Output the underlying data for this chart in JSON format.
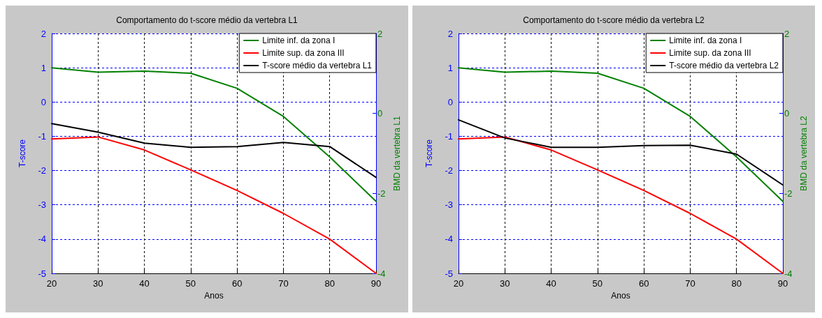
{
  "chart_data": [
    {
      "type": "line",
      "title": "Comportamento do t-score médio da vertebra L1",
      "xlabel": "Anos",
      "ylabel": "T-score",
      "y2label": "BMD da vertebra L1",
      "x": [
        20,
        30,
        40,
        50,
        60,
        70,
        80,
        90
      ],
      "xlim": [
        20,
        90
      ],
      "xticks": [
        20,
        30,
        40,
        50,
        60,
        70,
        80,
        90
      ],
      "ylim": [
        -5,
        2
      ],
      "yticks": [
        -5,
        -4,
        -3,
        -2,
        -1,
        0,
        1,
        2
      ],
      "y2lim": [
        -4,
        2
      ],
      "y2ticks": [
        -4,
        -2,
        0,
        2
      ],
      "grid": true,
      "legend": "top right",
      "marker": "none",
      "line_style": "solid",
      "series": [
        {
          "name": "Limite inf. da zona I",
          "color": "#008000",
          "values": [
            1,
            0.87,
            0.9,
            0.84,
            0.4,
            -0.42,
            -1.6,
            -2.9
          ]
        },
        {
          "name": "Limite sup. da zona III",
          "color": "#ff0000",
          "values": [
            -1.08,
            -1.02,
            -1.4,
            -1.98,
            -2.58,
            -3.25,
            -4.0,
            -5.0
          ]
        },
        {
          "name": "T-score médio da vertebra L1",
          "color": "#000000",
          "values": [
            -0.63,
            -0.88,
            -1.2,
            -1.32,
            -1.3,
            -1.18,
            -1.3,
            -2.2
          ]
        }
      ]
    },
    {
      "type": "line",
      "title": "Comportamento do t-score médio da vertebra L2",
      "xlabel": "Anos",
      "ylabel": "T-score",
      "y2label": "BMD da vertebra L2",
      "x": [
        20,
        30,
        40,
        50,
        60,
        70,
        80,
        90
      ],
      "xlim": [
        20,
        90
      ],
      "xticks": [
        20,
        30,
        40,
        50,
        60,
        70,
        80,
        90
      ],
      "ylim": [
        -5,
        2
      ],
      "yticks": [
        -5,
        -4,
        -3,
        -2,
        -1,
        0,
        1,
        2
      ],
      "y2lim": [
        -4,
        2
      ],
      "y2ticks": [
        -4,
        -2,
        0,
        2
      ],
      "grid": true,
      "legend": "top right",
      "marker": "none",
      "line_style": "solid",
      "series": [
        {
          "name": "Limite inf. da zona I",
          "color": "#008000",
          "values": [
            1,
            0.87,
            0.9,
            0.84,
            0.4,
            -0.42,
            -1.6,
            -2.9
          ]
        },
        {
          "name": "Limite sup. da zona III",
          "color": "#ff0000",
          "values": [
            -1.08,
            -1.02,
            -1.4,
            -1.98,
            -2.58,
            -3.25,
            -4.0,
            -5.0
          ]
        },
        {
          "name": "T-score médio da vertebra L2",
          "color": "#000000",
          "values": [
            -0.52,
            -1.05,
            -1.32,
            -1.32,
            -1.27,
            -1.26,
            -1.52,
            -2.42
          ]
        }
      ]
    }
  ]
}
